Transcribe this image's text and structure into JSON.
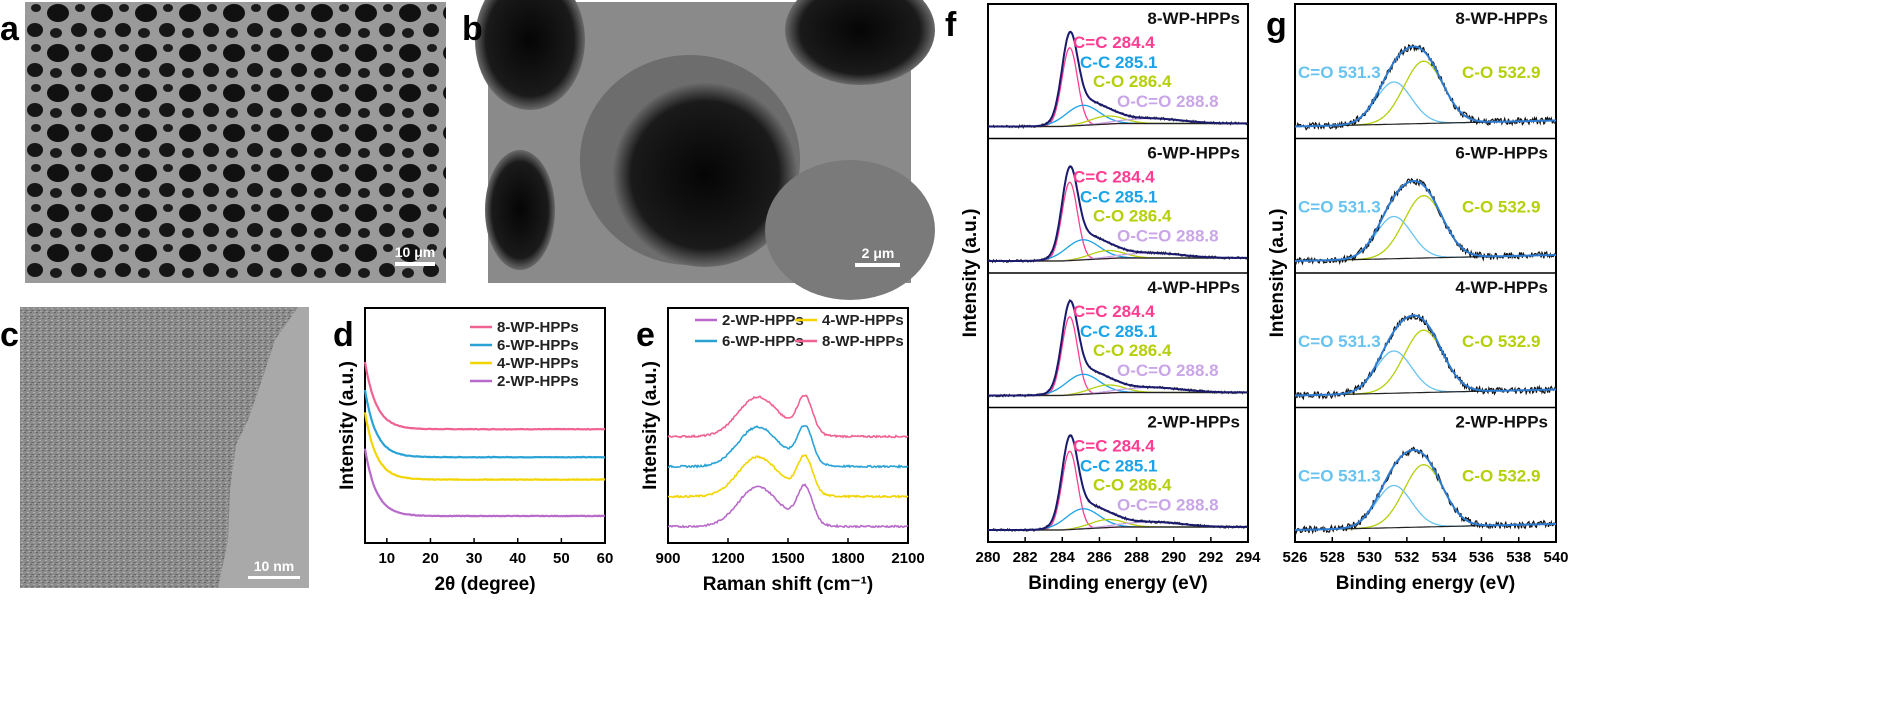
{
  "panel_labels": [
    "a",
    "b",
    "c",
    "d",
    "e",
    "f",
    "g"
  ],
  "scale_bars": {
    "a": "10 μm",
    "b": "2 μm",
    "c": "10 nm"
  },
  "colors": {
    "8": "#f06292",
    "6": "#29a3d6",
    "4": "#f2d500",
    "2": "#b76ac9",
    "xps_dark": "#1a1a6e",
    "xps_fit": "#2c7bd1",
    "peak_cc_sp2": "#ff3d91",
    "peak_cc": "#1aa3e8",
    "peak_co": "#b5cf0a",
    "peak_occo": "#c9a6e8",
    "o_c_eq_o": "#68c3f0",
    "o_c_o": "#b5cf0a"
  },
  "chart_data": [
    {
      "panel": "d",
      "type": "line",
      "xlabel": "2θ (degree)",
      "ylabel": "Intensity (a.u.)",
      "xlim": [
        5,
        60
      ],
      "xticks": [
        10,
        20,
        30,
        40,
        50,
        60
      ],
      "legend": [
        "8-WP-HPPs",
        "6-WP-HPPs",
        "4-WP-HPPs",
        "2-WP-HPPs"
      ],
      "series": [
        {
          "name": "8-WP-HPPs",
          "offset": 3.1
        },
        {
          "name": "6-WP-HPPs",
          "offset": 2.1
        },
        {
          "name": "4-WP-HPPs",
          "offset": 1.3
        },
        {
          "name": "2-WP-HPPs",
          "offset": 0
        }
      ]
    },
    {
      "panel": "e",
      "type": "line",
      "xlabel": "Raman shift (cm⁻¹)",
      "ylabel": "Intensity (a.u.)",
      "xlim": [
        900,
        2100
      ],
      "xticks": [
        900,
        1200,
        1500,
        1800,
        2100
      ],
      "legend": [
        "2-WP-HPPs",
        "4-WP-HPPs",
        "6-WP-HPPs",
        "8-WP-HPPs"
      ],
      "peaks": {
        "D": 1340,
        "G": 1585
      },
      "series": [
        {
          "name": "8-WP-HPPs",
          "offset": 3.0
        },
        {
          "name": "6-WP-HPPs",
          "offset": 2.0
        },
        {
          "name": "4-WP-HPPs",
          "offset": 1.0
        },
        {
          "name": "2-WP-HPPs",
          "offset": 0
        }
      ]
    },
    {
      "panel": "f",
      "type": "line",
      "xlabel": "Binding energy (eV)",
      "ylabel": "Intensity (a.u.)",
      "xlim": [
        280,
        294
      ],
      "xticks": [
        280,
        282,
        284,
        286,
        288,
        290,
        292,
        294
      ],
      "samples": [
        "8-WP-HPPs",
        "6-WP-HPPs",
        "4-WP-HPPs",
        "2-WP-HPPs"
      ],
      "components": [
        {
          "name": "C=C",
          "label": "C=C 284.4",
          "center": 284.4
        },
        {
          "name": "C-C",
          "label": "C-C 285.1",
          "center": 285.1
        },
        {
          "name": "C-O",
          "label": "C-O 286.4",
          "center": 286.4
        },
        {
          "name": "O-C=O",
          "label": "O-C=O 288.8",
          "center": 288.8
        }
      ]
    },
    {
      "panel": "g",
      "type": "line",
      "xlabel": "Binding energy (eV)",
      "ylabel": "Intensity (a.u.)",
      "xlim": [
        526,
        540
      ],
      "xticks": [
        526,
        528,
        530,
        532,
        534,
        536,
        538,
        540
      ],
      "samples": [
        "8-WP-HPPs",
        "6-WP-HPPs",
        "4-WP-HPPs",
        "2-WP-HPPs"
      ],
      "components": [
        {
          "name": "C=O",
          "label": "C=O 531.3",
          "center": 531.3
        },
        {
          "name": "C-O",
          "label": "C-O 532.9",
          "center": 532.9
        }
      ]
    }
  ]
}
